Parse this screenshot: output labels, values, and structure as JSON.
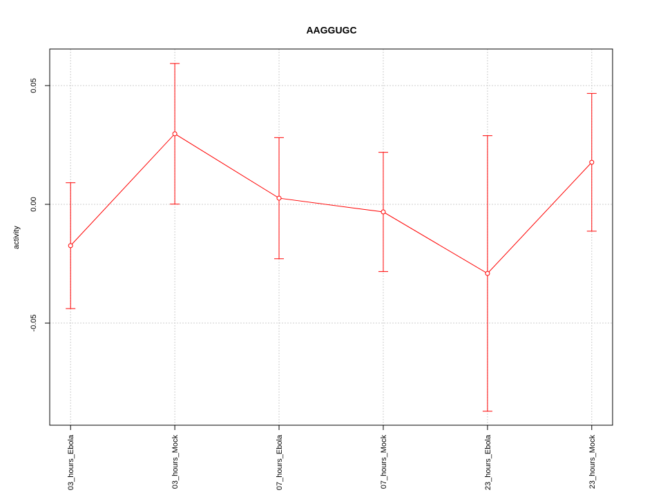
{
  "chart_data": {
    "type": "line",
    "title": "AAGGUGC",
    "y_label": "activity",
    "categories": [
      "03_hours_Ebola",
      "03_hours_Mock",
      "07_hours_Ebola",
      "07_hours_Mock",
      "23_hours_Ebola",
      "23_hours_Mock"
    ],
    "series": [
      {
        "color": "#ff0000",
        "values": [
          -0.0174,
          0.0297,
          0.0026,
          -0.0032,
          -0.0291,
          0.0177
        ],
        "errors": [
          0.0265,
          0.0296,
          0.0255,
          0.0251,
          0.058,
          0.029
        ]
      }
    ],
    "ylim": [
      -0.093,
      0.0654
    ],
    "yticks": [
      -0.05,
      {
        "value": 0,
        "label": "0.00"
      },
      0.05
    ],
    "grid": true
  }
}
